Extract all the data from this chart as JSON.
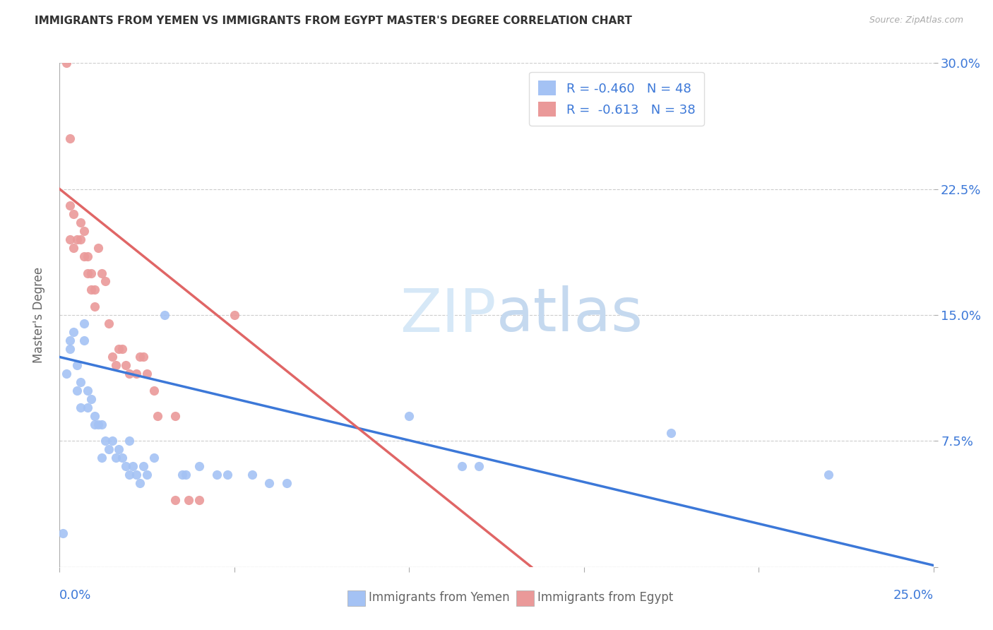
{
  "title": "IMMIGRANTS FROM YEMEN VS IMMIGRANTS FROM EGYPT MASTER'S DEGREE CORRELATION CHART",
  "source": "Source: ZipAtlas.com",
  "ylabel": "Master's Degree",
  "xlim": [
    0.0,
    0.25
  ],
  "ylim": [
    0.0,
    0.3
  ],
  "yticks": [
    0.0,
    0.075,
    0.15,
    0.225,
    0.3
  ],
  "yticklabels": [
    "",
    "7.5%",
    "15.0%",
    "22.5%",
    "30.0%"
  ],
  "x_left_label": "0.0%",
  "x_right_label": "25.0%",
  "watermark_zip": "ZIP",
  "watermark_atlas": "atlas",
  "legend_label1": "R = -0.460   N = 48",
  "legend_label2": "R =  -0.613   N = 38",
  "blue_color": "#a4c2f4",
  "pink_color": "#ea9999",
  "blue_line_color": "#3c78d8",
  "pink_line_color": "#e06666",
  "axis_label_color": "#3c78d8",
  "tick_color": "#aaaaaa",
  "grid_color": "#cccccc",
  "scatter_blue": [
    [
      0.002,
      0.115
    ],
    [
      0.003,
      0.13
    ],
    [
      0.003,
      0.135
    ],
    [
      0.004,
      0.14
    ],
    [
      0.005,
      0.12
    ],
    [
      0.005,
      0.105
    ],
    [
      0.006,
      0.11
    ],
    [
      0.006,
      0.095
    ],
    [
      0.007,
      0.145
    ],
    [
      0.007,
      0.135
    ],
    [
      0.008,
      0.105
    ],
    [
      0.008,
      0.095
    ],
    [
      0.009,
      0.1
    ],
    [
      0.01,
      0.09
    ],
    [
      0.01,
      0.085
    ],
    [
      0.011,
      0.085
    ],
    [
      0.012,
      0.085
    ],
    [
      0.012,
      0.065
    ],
    [
      0.013,
      0.075
    ],
    [
      0.014,
      0.07
    ],
    [
      0.015,
      0.075
    ],
    [
      0.016,
      0.065
    ],
    [
      0.017,
      0.07
    ],
    [
      0.018,
      0.065
    ],
    [
      0.019,
      0.06
    ],
    [
      0.02,
      0.075
    ],
    [
      0.02,
      0.055
    ],
    [
      0.021,
      0.06
    ],
    [
      0.022,
      0.055
    ],
    [
      0.023,
      0.05
    ],
    [
      0.024,
      0.06
    ],
    [
      0.025,
      0.055
    ],
    [
      0.027,
      0.065
    ],
    [
      0.03,
      0.15
    ],
    [
      0.035,
      0.055
    ],
    [
      0.036,
      0.055
    ],
    [
      0.04,
      0.06
    ],
    [
      0.045,
      0.055
    ],
    [
      0.048,
      0.055
    ],
    [
      0.055,
      0.055
    ],
    [
      0.06,
      0.05
    ],
    [
      0.065,
      0.05
    ],
    [
      0.1,
      0.09
    ],
    [
      0.115,
      0.06
    ],
    [
      0.12,
      0.06
    ],
    [
      0.175,
      0.08
    ],
    [
      0.22,
      0.055
    ],
    [
      0.001,
      0.02
    ]
  ],
  "scatter_pink": [
    [
      0.002,
      0.3
    ],
    [
      0.003,
      0.255
    ],
    [
      0.004,
      0.19
    ],
    [
      0.005,
      0.195
    ],
    [
      0.006,
      0.205
    ],
    [
      0.006,
      0.195
    ],
    [
      0.007,
      0.2
    ],
    [
      0.007,
      0.185
    ],
    [
      0.008,
      0.185
    ],
    [
      0.008,
      0.175
    ],
    [
      0.009,
      0.175
    ],
    [
      0.009,
      0.165
    ],
    [
      0.01,
      0.165
    ],
    [
      0.01,
      0.155
    ],
    [
      0.011,
      0.19
    ],
    [
      0.012,
      0.175
    ],
    [
      0.013,
      0.17
    ],
    [
      0.014,
      0.145
    ],
    [
      0.015,
      0.125
    ],
    [
      0.016,
      0.12
    ],
    [
      0.017,
      0.13
    ],
    [
      0.018,
      0.13
    ],
    [
      0.019,
      0.12
    ],
    [
      0.02,
      0.115
    ],
    [
      0.022,
      0.115
    ],
    [
      0.023,
      0.125
    ],
    [
      0.024,
      0.125
    ],
    [
      0.025,
      0.115
    ],
    [
      0.027,
      0.105
    ],
    [
      0.028,
      0.09
    ],
    [
      0.033,
      0.09
    ],
    [
      0.033,
      0.04
    ],
    [
      0.037,
      0.04
    ],
    [
      0.04,
      0.04
    ],
    [
      0.05,
      0.15
    ],
    [
      0.003,
      0.215
    ],
    [
      0.004,
      0.21
    ],
    [
      0.003,
      0.195
    ]
  ],
  "blue_trend_x": [
    0.0,
    0.25
  ],
  "blue_trend_y": [
    0.125,
    0.001
  ],
  "pink_trend_x": [
    0.0,
    0.135
  ],
  "pink_trend_y": [
    0.225,
    0.0
  ]
}
